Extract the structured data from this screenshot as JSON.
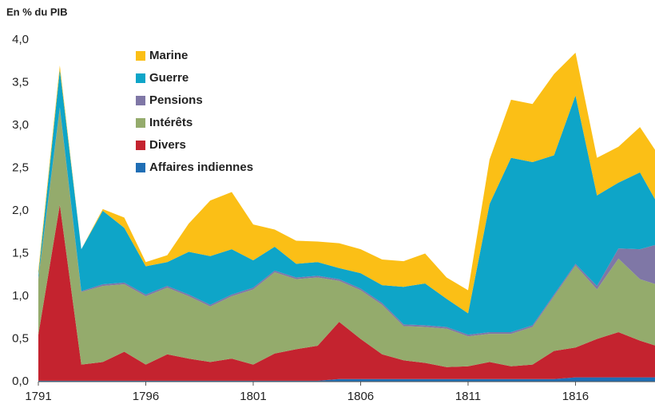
{
  "chart_data": {
    "type": "stacked_area",
    "subtitle": "En % du PIB",
    "x": [
      1791,
      1792,
      1793,
      1794,
      1795,
      1796,
      1797,
      1798,
      1799,
      1800,
      1801,
      1802,
      1803,
      1804,
      1805,
      1806,
      1807,
      1808,
      1809,
      1810,
      1811,
      1812,
      1813,
      1814,
      1815,
      1816,
      1817,
      1818,
      1819,
      1820
    ],
    "series": [
      {
        "name": "Affaires indiennes",
        "color": "#1f6eb5",
        "values": [
          0.01,
          0.01,
          0.01,
          0.01,
          0.01,
          0.01,
          0.01,
          0.01,
          0.01,
          0.01,
          0.01,
          0.01,
          0.01,
          0.01,
          0.03,
          0.03,
          0.03,
          0.03,
          0.03,
          0.03,
          0.03,
          0.03,
          0.03,
          0.03,
          0.03,
          0.05,
          0.05,
          0.05,
          0.05,
          0.05
        ]
      },
      {
        "name": "Divers",
        "color": "#c4232f",
        "values": [
          0.54,
          2.06,
          0.19,
          0.22,
          0.34,
          0.19,
          0.31,
          0.26,
          0.22,
          0.26,
          0.19,
          0.32,
          0.37,
          0.41,
          0.67,
          0.47,
          0.29,
          0.22,
          0.19,
          0.14,
          0.15,
          0.2,
          0.15,
          0.17,
          0.33,
          0.35,
          0.45,
          0.53,
          0.43,
          0.35
        ]
      },
      {
        "name": "Intérêts",
        "color": "#94ab6c",
        "values": [
          0.65,
          1.13,
          0.85,
          0.89,
          0.79,
          0.8,
          0.78,
          0.73,
          0.65,
          0.73,
          0.88,
          0.95,
          0.82,
          0.8,
          0.48,
          0.57,
          0.58,
          0.4,
          0.42,
          0.45,
          0.35,
          0.33,
          0.38,
          0.44,
          0.64,
          0.96,
          0.58,
          0.86,
          0.72,
          0.72
        ]
      },
      {
        "name": "Pensions",
        "color": "#7f77a6",
        "values": [
          0.01,
          0.01,
          0.01,
          0.02,
          0.02,
          0.02,
          0.02,
          0.02,
          0.02,
          0.02,
          0.02,
          0.02,
          0.02,
          0.02,
          0.02,
          0.02,
          0.02,
          0.02,
          0.02,
          0.02,
          0.02,
          0.02,
          0.02,
          0.02,
          0.02,
          0.02,
          0.04,
          0.12,
          0.35,
          0.5
        ]
      },
      {
        "name": "Guerre",
        "color": "#0ea5c8",
        "values": [
          0.04,
          0.44,
          0.49,
          0.86,
          0.64,
          0.33,
          0.28,
          0.5,
          0.57,
          0.53,
          0.32,
          0.28,
          0.16,
          0.16,
          0.13,
          0.18,
          0.21,
          0.44,
          0.49,
          0.33,
          0.25,
          1.5,
          2.04,
          1.91,
          1.63,
          1.97,
          1.06,
          0.77,
          0.9,
          0.38
        ]
      },
      {
        "name": "Marine",
        "color": "#fbbf16",
        "values": [
          0.05,
          0.05,
          0,
          0.02,
          0.12,
          0.05,
          0.08,
          0.33,
          0.65,
          0.67,
          0.42,
          0.2,
          0.27,
          0.24,
          0.29,
          0.28,
          0.3,
          0.3,
          0.35,
          0.25,
          0.27,
          0.52,
          0.68,
          0.68,
          0.95,
          0.5,
          0.44,
          0.42,
          0.53,
          0.6
        ]
      }
    ],
    "xlim": [
      1791,
      1819.7
    ],
    "xticks": [
      1791,
      1796,
      1801,
      1806,
      1811,
      1816
    ],
    "ylim": [
      0,
      4
    ],
    "yticks": [
      {
        "value": 0,
        "label": "0,0"
      },
      {
        "value": 0.5,
        "label": "0,5"
      },
      {
        "value": 1,
        "label": "1,0"
      },
      {
        "value": 1.5,
        "label": "1,5"
      },
      {
        "value": 2,
        "label": "2,0"
      },
      {
        "value": 2.5,
        "label": "2,5"
      },
      {
        "value": 3,
        "label": "3,0"
      },
      {
        "value": 3.5,
        "label": "3,5"
      },
      {
        "value": 4,
        "label": "4,0"
      }
    ],
    "legend": "top-left",
    "grid": false
  }
}
